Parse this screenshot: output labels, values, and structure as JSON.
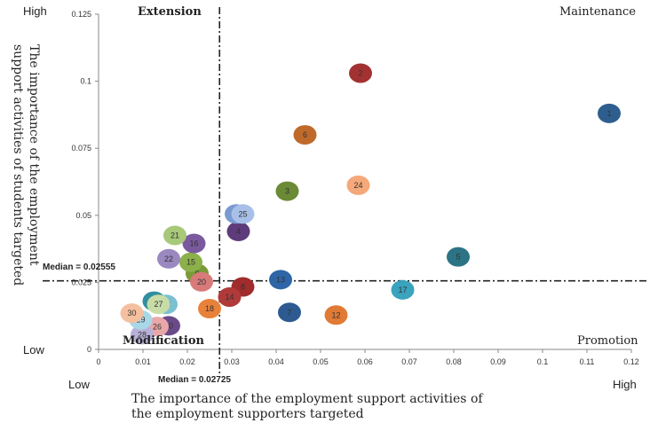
{
  "chart_data": {
    "type": "scatter",
    "xlim": [
      0,
      0.12
    ],
    "ylim": [
      0,
      0.125
    ],
    "x_ticks": [
      "0",
      "0.01",
      "0.02",
      "0.03",
      "0.04",
      "0.05",
      "0.06",
      "0.07",
      "0.08",
      "0.09",
      "0.1",
      "0.11",
      "0.12"
    ],
    "y_ticks": [
      "0",
      "0.025",
      "0.05",
      "0.075",
      "0.1",
      "0.125"
    ],
    "xlabel_lines": [
      "The importance of the employment support activities of",
      "the employment supporters targeted"
    ],
    "ylabel_lines": [
      "The importance of the employment",
      "support activities of students targeted"
    ],
    "corner_labels": {
      "y_high": "High",
      "y_low": "Low",
      "x_low": "Low",
      "x_high": "High"
    },
    "quadrants": {
      "top_left": "Extension",
      "top_right": "Maintenance",
      "bottom_left": "Modification",
      "bottom_right": "Promotion"
    },
    "median_x": {
      "value": 0.02725,
      "label": "Median = 0.02725"
    },
    "median_y": {
      "value": 0.02555,
      "label": "Median = 0.02555"
    },
    "grid": false,
    "points": [
      {
        "label": "1",
        "x": 0.115,
        "y": 0.088,
        "color": "#2e5e8e"
      },
      {
        "label": "2",
        "x": 0.059,
        "y": 0.103,
        "color": "#a23232"
      },
      {
        "label": "3",
        "x": 0.0425,
        "y": 0.059,
        "color": "#6a8a35"
      },
      {
        "label": "4",
        "x": 0.0315,
        "y": 0.044,
        "color": "#5e3b7a"
      },
      {
        "label": "5",
        "x": 0.081,
        "y": 0.0345,
        "color": "#2c7385"
      },
      {
        "label": "6",
        "x": 0.0465,
        "y": 0.08,
        "color": "#bf6a2a"
      },
      {
        "label": "7",
        "x": 0.043,
        "y": 0.0138,
        "color": "#2d5a90"
      },
      {
        "label": "8",
        "x": 0.0325,
        "y": 0.0233,
        "color": "#a02c2c"
      },
      {
        "label": "9",
        "x": 0.0222,
        "y": 0.0283,
        "color": "#7a9a3a"
      },
      {
        "label": "10",
        "x": 0.0158,
        "y": 0.0088,
        "color": "#6b4a8a"
      },
      {
        "label": "11",
        "x": 0.0125,
        "y": 0.018,
        "color": "#2f8ea0"
      },
      {
        "label": "12",
        "x": 0.0535,
        "y": 0.0128,
        "color": "#e07a35"
      },
      {
        "label": "13",
        "x": 0.041,
        "y": 0.026,
        "color": "#2e65a6"
      },
      {
        "label": "14",
        "x": 0.0295,
        "y": 0.0195,
        "color": "#b03a3a"
      },
      {
        "label": "15",
        "x": 0.0208,
        "y": 0.0325,
        "color": "#8cb04a"
      },
      {
        "label": "16",
        "x": 0.0215,
        "y": 0.0395,
        "color": "#7a5a9e"
      },
      {
        "label": "17",
        "x": 0.0685,
        "y": 0.0222,
        "color": "#3aa3bd"
      },
      {
        "label": "18",
        "x": 0.025,
        "y": 0.0152,
        "color": "#e8823a"
      },
      {
        "label": "19",
        "x": 0.031,
        "y": 0.0505,
        "color": "#7a9ad0"
      },
      {
        "label": "20",
        "x": 0.0232,
        "y": 0.0252,
        "color": "#d87a7a"
      },
      {
        "label": "21",
        "x": 0.0172,
        "y": 0.0425,
        "color": "#a8c87a"
      },
      {
        "label": "22",
        "x": 0.0158,
        "y": 0.0338,
        "color": "#9a88c0"
      },
      {
        "label": "23",
        "x": 0.0152,
        "y": 0.0168,
        "color": "#7ac0d0"
      },
      {
        "label": "24",
        "x": 0.0585,
        "y": 0.0612,
        "color": "#f5a87a"
      },
      {
        "label": "25",
        "x": 0.0325,
        "y": 0.0505,
        "color": "#a8c0e8"
      },
      {
        "label": "26",
        "x": 0.0132,
        "y": 0.0085,
        "color": "#e8a8a8"
      },
      {
        "label": "27",
        "x": 0.0135,
        "y": 0.0168,
        "color": "#c8dca8"
      },
      {
        "label": "28",
        "x": 0.0098,
        "y": 0.0055,
        "color": "#b8b0d8"
      },
      {
        "label": "29",
        "x": 0.0095,
        "y": 0.011,
        "color": "#a8d8e8"
      },
      {
        "label": "30",
        "x": 0.0075,
        "y": 0.0135,
        "color": "#f5c0a0"
      }
    ]
  }
}
